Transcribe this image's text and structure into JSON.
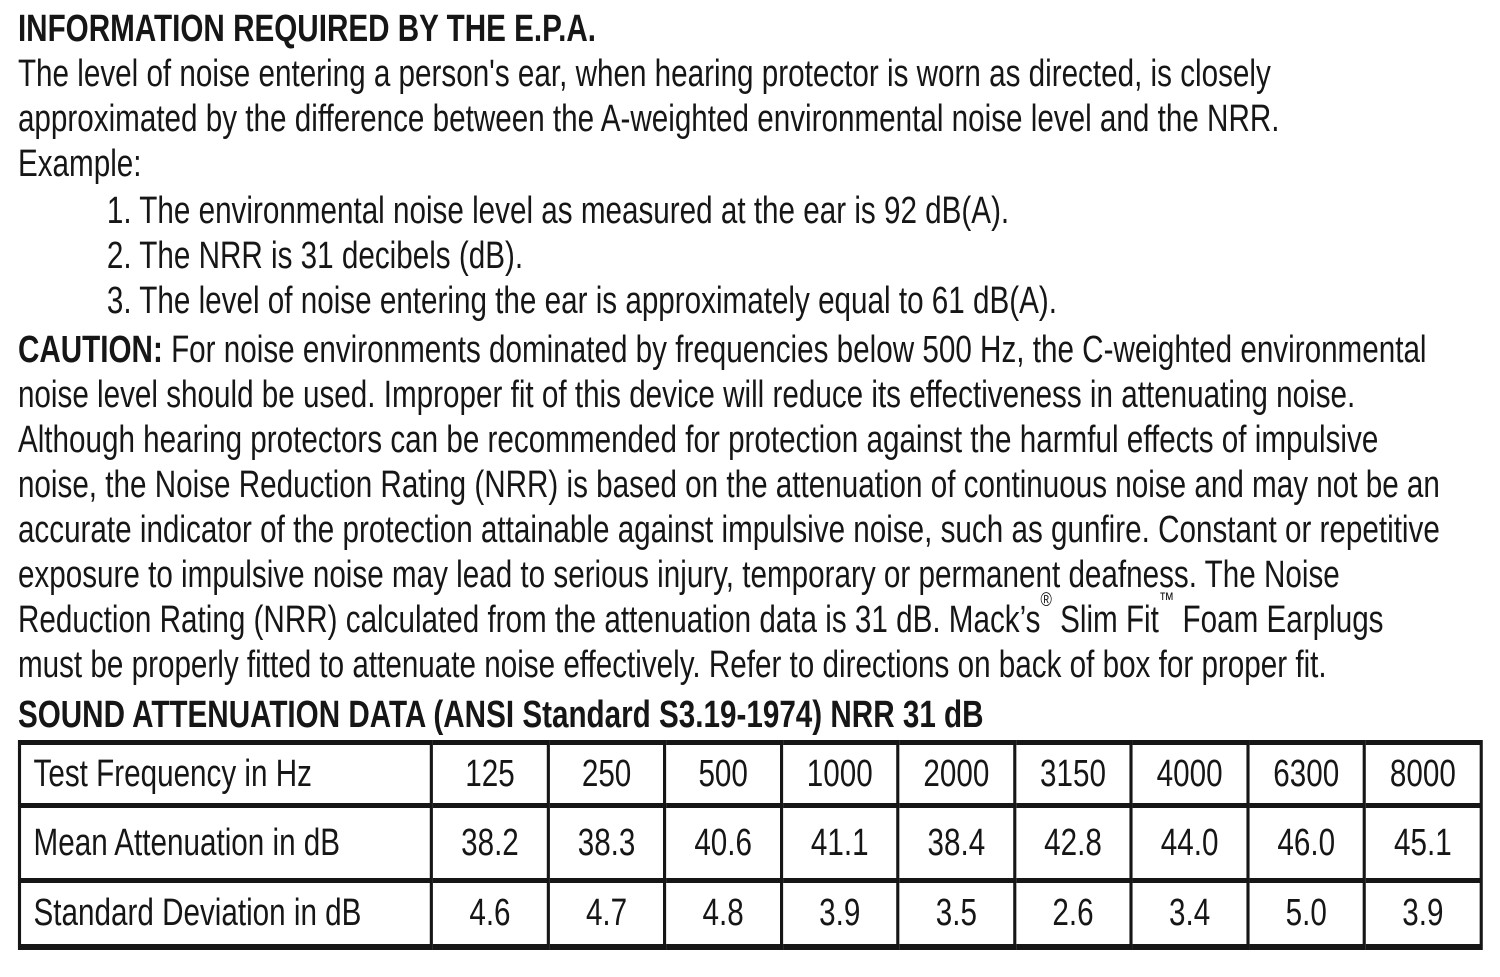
{
  "page": {
    "heading": "INFORMATION REQUIRED BY THE E.P.A.",
    "intro_lines": [
      "The level of noise entering a person's ear, when hearing protector is worn as directed, is closely",
      "approximated by the difference between the A-weighted environmental noise level and the NRR.",
      "Example:"
    ],
    "example_items": [
      "1. The environmental noise level as measured at the ear is 92 dB(A).",
      "2. The NRR is 31 decibels (dB).",
      "3. The level of noise entering the ear is approximately equal to 61 dB(A)."
    ],
    "caution": {
      "label": "CAUTION:",
      "first_line_rest": " For noise environments dominated by frequencies below 500 Hz, the C-weighted environmental",
      "lines": [
        "noise level should be used. Improper fit of this device will reduce its effectiveness in attenuating noise.",
        "Although hearing protectors can be recommended for protection against the harmful effects of impulsive",
        "noise, the Noise Reduction Rating (NRR) is based on the attenuation of continuous noise and may not be an",
        "accurate indicator of the protection attainable against impulsive noise, such as gunfire. Constant or repetitive",
        "exposure to impulsive noise may lead to serious injury, temporary or permanent deafness. The Noise",
        "Reduction Rating (NRR) calculated from the attenuation data is 31 dB. Mack’s® Slim Fit™ Foam Earplugs",
        "must be properly fitted to attenuate noise effectively. Refer to directions on back of box for proper fit."
      ]
    },
    "table_heading": "SOUND ATTENUATION DATA (ANSI Standard S3.19-1974) NRR 31 dB"
  },
  "table": {
    "rows": [
      {
        "label": "Test Frequency in Hz",
        "values": [
          "125",
          "250",
          "500",
          "1000",
          "2000",
          "3150",
          "4000",
          "6300",
          "8000"
        ]
      },
      {
        "label": "Mean Attenuation in dB",
        "values": [
          "38.2",
          "38.3",
          "40.6",
          "41.1",
          "38.4",
          "42.8",
          "44.0",
          "46.0",
          "45.1"
        ]
      },
      {
        "label": "Standard Deviation in dB",
        "values": [
          "4.6",
          "4.7",
          "4.8",
          "3.9",
          "3.5",
          "2.6",
          "3.4",
          "5.0",
          "3.9"
        ]
      }
    ]
  },
  "colors": {
    "text": "#161616",
    "background": "#ffffff"
  }
}
